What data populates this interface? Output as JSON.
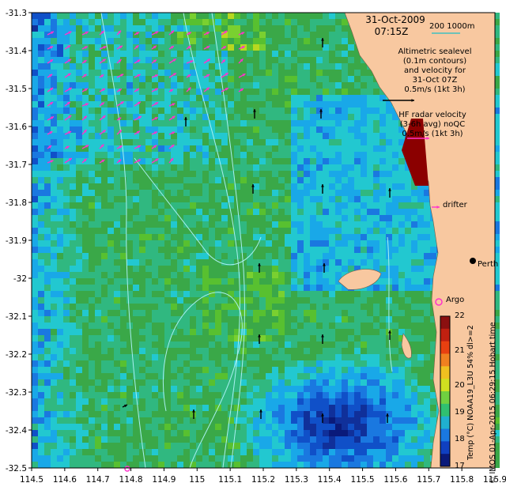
{
  "map": {
    "date": "31-Oct-2009",
    "time": "07:15Z",
    "scale_bar_label": "200",
    "scale_bar_units": "1000m",
    "altimetry_note": [
      "Altimetric sealevel",
      "(0.1m contours)",
      "and velocity for",
      "31-Oct 07Z",
      "0.5m/s (1kt 3h)"
    ],
    "hf_radar_note": [
      "HF radar velocity",
      "(3-6h avg) noQC",
      "0.5m/s (1kt 3h)"
    ],
    "drifter_label": "drifter",
    "argo_label": "Argo",
    "city_label": "Perth",
    "footer_vertical": "© IMOS 01-Apr-2015 06:29:15 Hobart time",
    "colors": {
      "land": "#f8c8a0",
      "hf_radar_arrows": "#ff33cc",
      "contours": "#a8f0f0",
      "argo": "#ff33cc",
      "coastal_strip": "#8b0000"
    },
    "x_ticks": [
      "114.5",
      "114.6",
      "114.7",
      "114.8",
      "114.9",
      "115",
      "115.1",
      "115.2",
      "115.3",
      "115.4",
      "115.5",
      "115.6",
      "115.7",
      "115.8",
      "115.9"
    ],
    "y_ticks": [
      "-31.3",
      "-31.4",
      "-31.5",
      "-31.6",
      "-31.7",
      "-31.8",
      "-31.9",
      "-32",
      "-32.1",
      "-32.2",
      "-32.3",
      "-32.4",
      "-32.5"
    ]
  },
  "colorbar": {
    "label": "Temp (°C) NOAA19_L3U 54% dl>=2",
    "ticks": [
      "22",
      "21",
      "20",
      "19",
      "18",
      "17"
    ],
    "range": [
      17,
      22
    ]
  }
}
